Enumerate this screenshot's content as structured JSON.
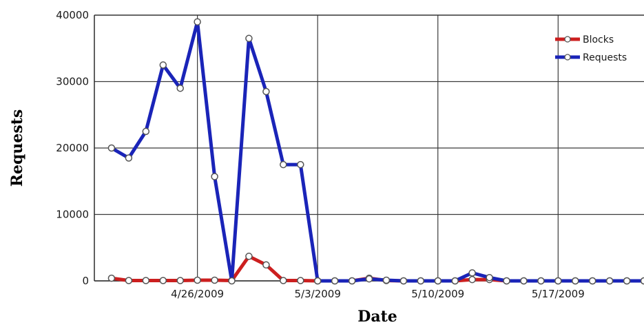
{
  "chart_data": {
    "type": "line",
    "title": "",
    "xlabel": "Date",
    "ylabel": "Requests",
    "x_ticks": [
      "4/26/2009",
      "5/3/2009",
      "5/10/2009",
      "5/17/2009"
    ],
    "y_ticks": [
      "0",
      "10000",
      "20000",
      "30000",
      "40000"
    ],
    "ylim": [
      0,
      40000
    ],
    "xlim": [
      "4/20/2009",
      "5/22/2009"
    ],
    "x": [
      "4/21/2009",
      "4/22/2009",
      "4/23/2009",
      "4/24/2009",
      "4/25/2009",
      "4/26/2009",
      "4/27/2009",
      "4/28/2009",
      "4/29/2009",
      "4/30/2009",
      "5/1/2009",
      "5/2/2009",
      "5/3/2009",
      "5/4/2009",
      "5/5/2009",
      "5/6/2009",
      "5/7/2009",
      "5/8/2009",
      "5/9/2009",
      "5/10/2009",
      "5/11/2009",
      "5/12/2009",
      "5/13/2009",
      "5/14/2009",
      "5/15/2009",
      "5/16/2009",
      "5/17/2009",
      "5/18/2009",
      "5/19/2009",
      "5/20/2009",
      "5/21/2009",
      "5/22/2009"
    ],
    "grid": true,
    "legend": "top-right",
    "series": [
      {
        "name": "Blocks",
        "color": "#cc1f1f",
        "values": [
          400,
          50,
          50,
          50,
          50,
          100,
          100,
          50,
          3700,
          2400,
          50,
          50,
          0,
          0,
          0,
          400,
          50,
          0,
          0,
          0,
          0,
          200,
          200,
          0,
          0,
          0,
          0,
          0,
          0,
          0,
          0,
          0
        ]
      },
      {
        "name": "Requests",
        "color": "#1a24b8",
        "values": [
          20000,
          18500,
          22500,
          32500,
          29000,
          39000,
          15700,
          0,
          36500,
          28500,
          17500,
          17500,
          0,
          0,
          0,
          300,
          100,
          0,
          0,
          0,
          0,
          1200,
          500,
          0,
          0,
          0,
          0,
          0,
          0,
          0,
          0,
          0
        ]
      }
    ]
  }
}
